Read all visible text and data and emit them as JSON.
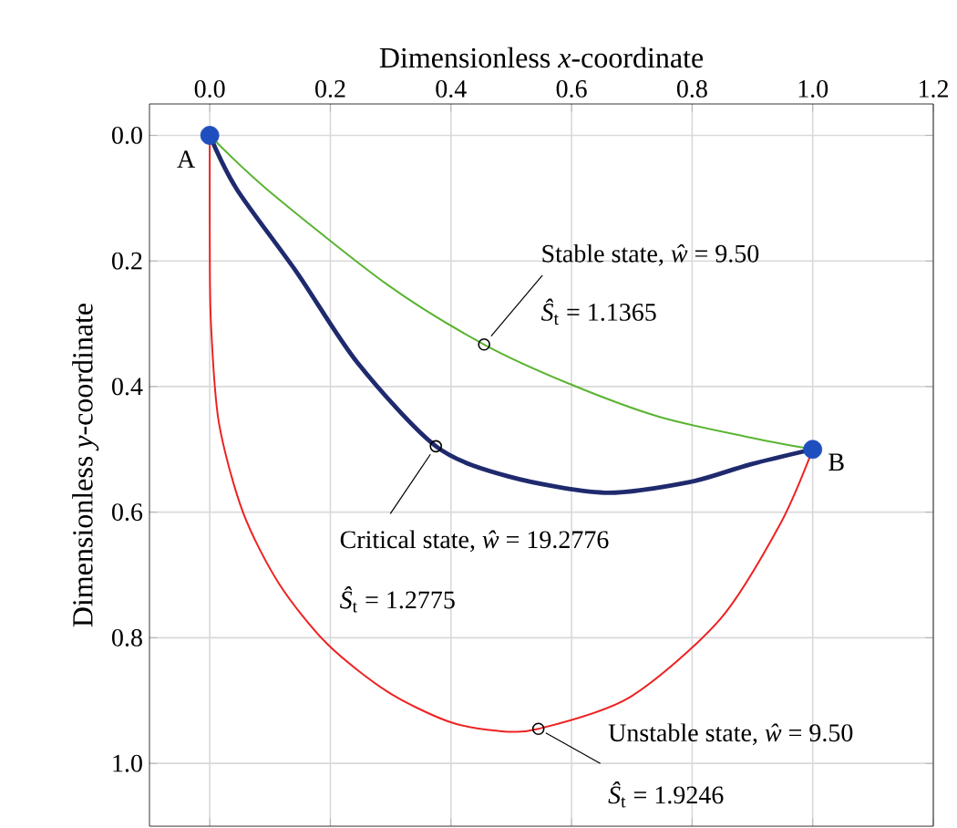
{
  "chart_data": {
    "type": "line",
    "xlabel": "Dimensionless *x*-coordinate",
    "ylabel": "Dimensionless *y*-coordinate",
    "xlim": [
      -0.1,
      1.2
    ],
    "ylim": [
      1.1,
      -0.05
    ],
    "xticks": [
      {
        "value": 0,
        "label": "0.0"
      },
      {
        "value": 0.2,
        "label": "0.2"
      },
      {
        "value": 0.4,
        "label": "0.4"
      },
      {
        "value": 0.6,
        "label": "0.6"
      },
      {
        "value": 0.8,
        "label": "0.8"
      },
      {
        "value": 1,
        "label": "1.0"
      },
      {
        "value": 1.2,
        "label": "1.2"
      }
    ],
    "yticks": [
      {
        "value": 0,
        "label": "0.0"
      },
      {
        "value": 0.2,
        "label": "0.2"
      },
      {
        "value": 0.4,
        "label": "0.4"
      },
      {
        "value": 0.6,
        "label": "0.6"
      },
      {
        "value": 0.8,
        "label": "0.8"
      },
      {
        "value": 1,
        "label": "1.0"
      }
    ],
    "grid": true,
    "series": [
      {
        "color": "#5ab432",
        "marker": "none",
        "x": [
          0,
          0.095,
          0.295,
          0.455,
          0.595,
          0.745,
          0.896,
          1.0
        ],
        "values": [
          0,
          0.086,
          0.238,
          0.333,
          0.395,
          0.448,
          0.481,
          0.5
        ]
      },
      {
        "color": "#1f2a6e",
        "marker": "none",
        "x": [
          0,
          0.045,
          0.145,
          0.245,
          0.375,
          0.495,
          0.655,
          0.796,
          0.896,
          1.0
        ],
        "values": [
          0,
          0.086,
          0.219,
          0.362,
          0.495,
          0.543,
          0.569,
          0.552,
          0.524,
          0.5
        ]
      },
      {
        "color": "#ee2222",
        "marker": "none",
        "x": [
          0,
          0.0,
          0.002,
          0.015,
          0.055,
          0.115,
          0.195,
          0.295,
          0.395,
          0.475,
          0.545,
          0.696,
          0.846,
          0.946,
          1.0
        ],
        "values": [
          0,
          0.171,
          0.3,
          0.457,
          0.6,
          0.714,
          0.81,
          0.886,
          0.933,
          0.948,
          0.945,
          0.895,
          0.771,
          0.619,
          0.5
        ]
      },
      {
        "type": "scatter",
        "color": "#000000",
        "marker": "circle",
        "x": [
          0.455,
          0.375,
          0.545
        ],
        "values": [
          0.333,
          0.495,
          0.945
        ]
      },
      {
        "type": "scatter",
        "color": "#1f4fbf",
        "marker": "circle",
        "x": [
          0,
          1.0
        ],
        "values": [
          0,
          0.5
        ]
      }
    ],
    "annotations": [
      {
        "text": "Stable state, *ŵ* = 9.50",
        "x": 0.455,
        "y": 0.333
      },
      "*Ŝ*$_{t}$ = 1.1365",
      {
        "text": "Critical state, *ŵ* = 19.2776",
        "x": 0.375,
        "y": 0.495
      },
      "*Ŝ*$_{t}$ = 1.2775",
      {
        "text": "Unstable state, *ŵ* = 9.50",
        "x": 0.545,
        "y": 0.945
      },
      "*Ŝ*$_{t}$ = 1.9246",
      {
        "text": "A",
        "x": 0,
        "y": 0
      },
      {
        "text": "B",
        "x": 1.0,
        "y": 0.5
      }
    ]
  }
}
